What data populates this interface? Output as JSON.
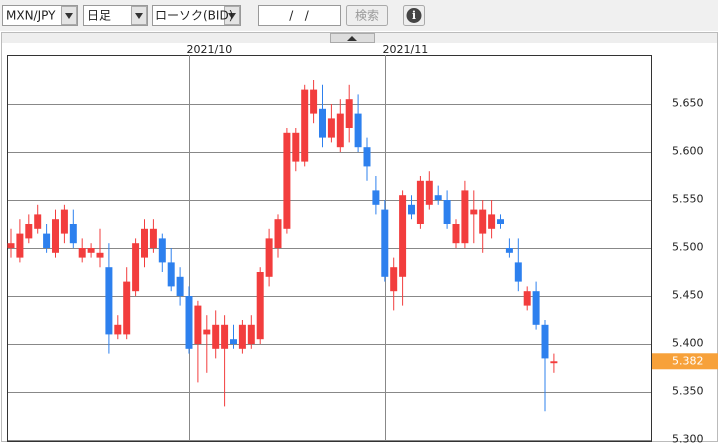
{
  "toolbar": {
    "symbol": "MXN/JPY",
    "period": "日足",
    "chart_kind": "ローソク(BID)",
    "date": "/   /",
    "search": "検索",
    "info": "i"
  },
  "chart_data": {
    "type": "candlestick",
    "categories": [
      null,
      null,
      null,
      null,
      null,
      null,
      null,
      null,
      null,
      null,
      null,
      null,
      null,
      null,
      null,
      null,
      null,
      null,
      null,
      null,
      "2021/10",
      null,
      null,
      null,
      null,
      null,
      null,
      null,
      null,
      null,
      null,
      null,
      null,
      null,
      null,
      null,
      null,
      null,
      null,
      null,
      null,
      null,
      "2021/11",
      null,
      null,
      null,
      null,
      null,
      null,
      null,
      null,
      null,
      null,
      null,
      null,
      null,
      null,
      null,
      null,
      null,
      null,
      null
    ],
    "open": [
      5.5,
      5.49,
      5.51,
      5.52,
      5.515,
      5.495,
      5.515,
      5.525,
      5.49,
      5.495,
      5.49,
      5.48,
      5.41,
      5.41,
      5.455,
      5.49,
      5.5,
      5.51,
      5.485,
      5.47,
      5.45,
      5.4,
      5.41,
      5.395,
      5.395,
      5.405,
      5.395,
      5.4,
      5.405,
      5.47,
      5.5,
      5.52,
      5.59,
      5.59,
      5.64,
      5.645,
      5.615,
      5.605,
      5.625,
      5.64,
      5.605,
      5.56,
      5.54,
      5.455,
      5.47,
      5.545,
      5.525,
      5.545,
      5.555,
      5.55,
      5.505,
      5.505,
      5.535,
      5.515,
      5.52,
      5.53,
      5.5,
      5.485,
      5.44,
      5.455,
      5.42,
      5.38
    ],
    "high": [
      5.52,
      5.53,
      5.535,
      5.545,
      5.525,
      5.54,
      5.545,
      5.54,
      5.51,
      5.505,
      5.52,
      5.505,
      5.43,
      5.48,
      5.51,
      5.53,
      5.53,
      5.515,
      5.5,
      5.48,
      5.46,
      5.445,
      5.43,
      5.435,
      5.43,
      5.42,
      5.425,
      5.43,
      5.48,
      5.52,
      5.535,
      5.625,
      5.625,
      5.67,
      5.675,
      5.67,
      5.65,
      5.655,
      5.67,
      5.66,
      5.615,
      5.575,
      5.55,
      5.49,
      5.56,
      5.555,
      5.575,
      5.58,
      5.565,
      5.56,
      5.53,
      5.57,
      5.56,
      5.55,
      5.55,
      5.535,
      5.51,
      5.51,
      5.46,
      5.465,
      5.425,
      5.39
    ],
    "low": [
      5.49,
      5.485,
      5.505,
      5.515,
      5.495,
      5.49,
      5.505,
      5.5,
      5.485,
      5.49,
      5.48,
      5.39,
      5.405,
      5.405,
      5.45,
      5.48,
      5.495,
      5.475,
      5.455,
      5.44,
      5.39,
      5.36,
      5.37,
      5.385,
      5.335,
      5.395,
      5.39,
      5.395,
      5.4,
      5.46,
      5.49,
      5.515,
      5.58,
      5.585,
      5.63,
      5.605,
      5.61,
      5.6,
      5.61,
      5.6,
      5.57,
      5.535,
      5.465,
      5.435,
      5.44,
      5.53,
      5.52,
      5.54,
      5.545,
      5.52,
      5.5,
      5.5,
      5.505,
      5.495,
      5.51,
      5.52,
      5.49,
      5.455,
      5.435,
      5.415,
      5.33,
      5.37
    ],
    "close": [
      5.505,
      5.515,
      5.525,
      5.535,
      5.5,
      5.53,
      5.54,
      5.505,
      5.5,
      5.5,
      5.495,
      5.41,
      5.42,
      5.465,
      5.505,
      5.52,
      5.52,
      5.485,
      5.46,
      5.45,
      5.395,
      5.44,
      5.415,
      5.42,
      5.42,
      5.4,
      5.42,
      5.42,
      5.475,
      5.51,
      5.53,
      5.62,
      5.62,
      5.665,
      5.665,
      5.615,
      5.635,
      5.64,
      5.655,
      5.605,
      5.585,
      5.545,
      5.47,
      5.48,
      5.555,
      5.535,
      5.57,
      5.57,
      5.55,
      5.525,
      5.525,
      5.56,
      5.54,
      5.54,
      5.535,
      5.525,
      5.495,
      5.465,
      5.455,
      5.42,
      5.385,
      5.382
    ],
    "up_color": "#f23d3d",
    "down_color": "#2d80ee",
    "ylim": [
      5.3,
      5.7
    ],
    "yticks": [
      {
        "value": 5.3,
        "label": "5.300"
      },
      {
        "value": 5.35,
        "label": "5.350"
      },
      {
        "value": 5.4,
        "label": "5.400"
      },
      {
        "value": 5.45,
        "label": "5.450"
      },
      {
        "value": 5.5,
        "label": "5.500"
      },
      {
        "value": 5.55,
        "label": "5.550"
      },
      {
        "value": 5.6,
        "label": "5.600"
      },
      {
        "value": 5.65,
        "label": "5.650"
      }
    ],
    "current_price": {
      "value": 5.382,
      "label": "5.382"
    },
    "grid": true
  }
}
